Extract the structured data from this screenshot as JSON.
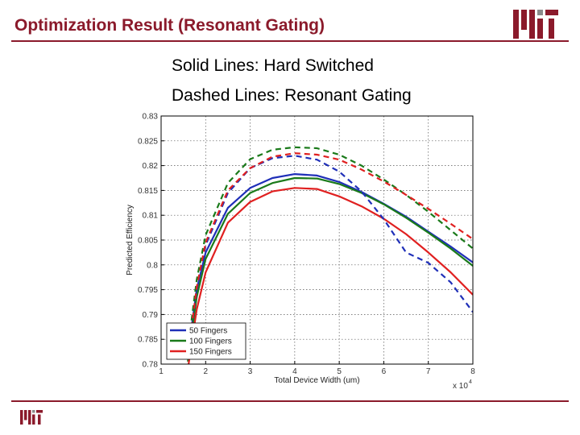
{
  "slide": {
    "title": "Optimization Result (Resonant Gating)",
    "subtitle_line1": "Solid Lines: Hard Switched",
    "subtitle_line2": "Dashed Lines: Resonant Gating",
    "accent_color": "#8b1a2b",
    "logo_name": "mit-logo-icon"
  },
  "chart_data": {
    "type": "line",
    "xlabel": "Total Device Width (um)",
    "ylabel": "Predicted Efficiency",
    "x_multiplier_label": "x 10",
    "x_multiplier_exponent": "4",
    "xlim": [
      1,
      8
    ],
    "ylim": [
      0.78,
      0.83
    ],
    "xticks": [
      "1",
      "2",
      "3",
      "4",
      "5",
      "6",
      "7",
      "8"
    ],
    "yticks": [
      "0.78",
      "0.785",
      "0.79",
      "0.795",
      "0.8",
      "0.805",
      "0.81",
      "0.815",
      "0.82",
      "0.825",
      "0.83"
    ],
    "grid": true,
    "legend_position": "bottom-left",
    "series": [
      {
        "name": "50 Fingers",
        "color": "#1f2fb8",
        "style": "solid",
        "x": [
          1.6,
          1.8,
          2.0,
          2.5,
          3.0,
          3.5,
          4.0,
          4.5,
          5.0,
          5.5,
          6.0,
          6.5,
          7.0,
          7.5,
          8.0
        ],
        "y": [
          0.782,
          0.795,
          0.8025,
          0.8115,
          0.8155,
          0.8175,
          0.8183,
          0.818,
          0.8167,
          0.8147,
          0.8123,
          0.8097,
          0.8067,
          0.8037,
          0.8005
        ]
      },
      {
        "name": "100 Fingers",
        "color": "#1a7a1a",
        "style": "solid",
        "x": [
          1.6,
          1.8,
          2.0,
          2.5,
          3.0,
          3.5,
          4.0,
          4.5,
          5.0,
          5.5,
          6.0,
          6.5,
          7.0,
          7.5,
          8.0
        ],
        "y": [
          0.7805,
          0.7935,
          0.8012,
          0.8103,
          0.8145,
          0.8165,
          0.8175,
          0.8174,
          0.8163,
          0.8145,
          0.8122,
          0.8095,
          0.8065,
          0.8033,
          0.7998
        ]
      },
      {
        "name": "150 Fingers",
        "color": "#e02020",
        "style": "solid",
        "x": [
          1.6,
          1.8,
          2.0,
          2.5,
          3.0,
          3.5,
          4.0,
          4.5,
          5.0,
          5.5,
          6.0,
          6.5,
          7.0,
          7.5,
          8.0
        ],
        "y": [
          0.779,
          0.791,
          0.7985,
          0.8085,
          0.8127,
          0.8148,
          0.8155,
          0.8153,
          0.8138,
          0.8118,
          0.8093,
          0.8062,
          0.8025,
          0.7985,
          0.794
        ]
      },
      {
        "name": "",
        "color": "#1f2fb8",
        "style": "dashed",
        "x": [
          1.6,
          1.8,
          2.0,
          2.5,
          3.0,
          3.5,
          4.0,
          4.5,
          5.0,
          5.5,
          6.0,
          6.5,
          7.0,
          7.5,
          8.0
        ],
        "y": [
          0.7815,
          0.795,
          0.804,
          0.8145,
          0.8195,
          0.8215,
          0.822,
          0.8212,
          0.8188,
          0.8148,
          0.8092,
          0.8025,
          0.8004,
          0.7965,
          0.7905
        ]
      },
      {
        "name": "",
        "color": "#1a7a1a",
        "style": "dashed",
        "x": [
          1.6,
          1.8,
          2.0,
          2.5,
          3.0,
          3.5,
          4.0,
          4.5,
          5.0,
          5.5,
          6.0,
          6.5,
          7.0,
          7.5,
          8.0
        ],
        "y": [
          0.783,
          0.797,
          0.806,
          0.8165,
          0.8213,
          0.8232,
          0.8237,
          0.8235,
          0.8222,
          0.82,
          0.8172,
          0.8141,
          0.8107,
          0.807,
          0.8033
        ]
      },
      {
        "name": "",
        "color": "#e02020",
        "style": "dashed",
        "x": [
          1.6,
          1.8,
          2.0,
          2.5,
          3.0,
          3.5,
          4.0,
          4.5,
          5.0,
          5.5,
          6.0,
          6.5,
          7.0,
          7.5,
          8.0
        ],
        "y": [
          0.7815,
          0.7955,
          0.8045,
          0.815,
          0.8195,
          0.8218,
          0.8225,
          0.8222,
          0.8212,
          0.8192,
          0.8168,
          0.8141,
          0.8113,
          0.8083,
          0.8052
        ]
      }
    ]
  }
}
